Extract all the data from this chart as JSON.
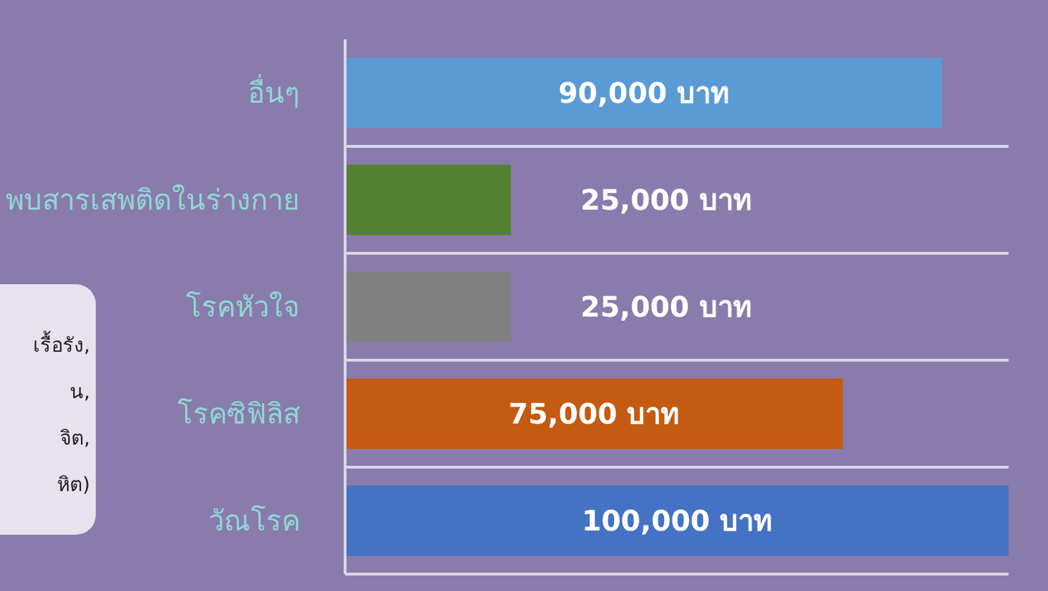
{
  "chart_data": {
    "type": "bar",
    "orientation": "horizontal",
    "categories": [
      "อื่นๆ",
      "พบสารเสพติดในร่างกาย",
      "โรคหัวใจ",
      "โรคซิฟิลิส",
      "วัณโรค"
    ],
    "values": [
      90000,
      25000,
      25000,
      75000,
      100000
    ],
    "colors": [
      "#5b9bd5",
      "#548235",
      "#808080",
      "#c55a11",
      "#4472c4"
    ],
    "value_labels": [
      "90,000 บาท",
      "25,000 บาท",
      "25,000 บาท",
      "75,000 บาท",
      "100,000 บาท"
    ],
    "grid": "y",
    "annotations": [
      "เรื้อรัง,",
      "น,",
      "จิต,",
      "หิต)"
    ]
  }
}
